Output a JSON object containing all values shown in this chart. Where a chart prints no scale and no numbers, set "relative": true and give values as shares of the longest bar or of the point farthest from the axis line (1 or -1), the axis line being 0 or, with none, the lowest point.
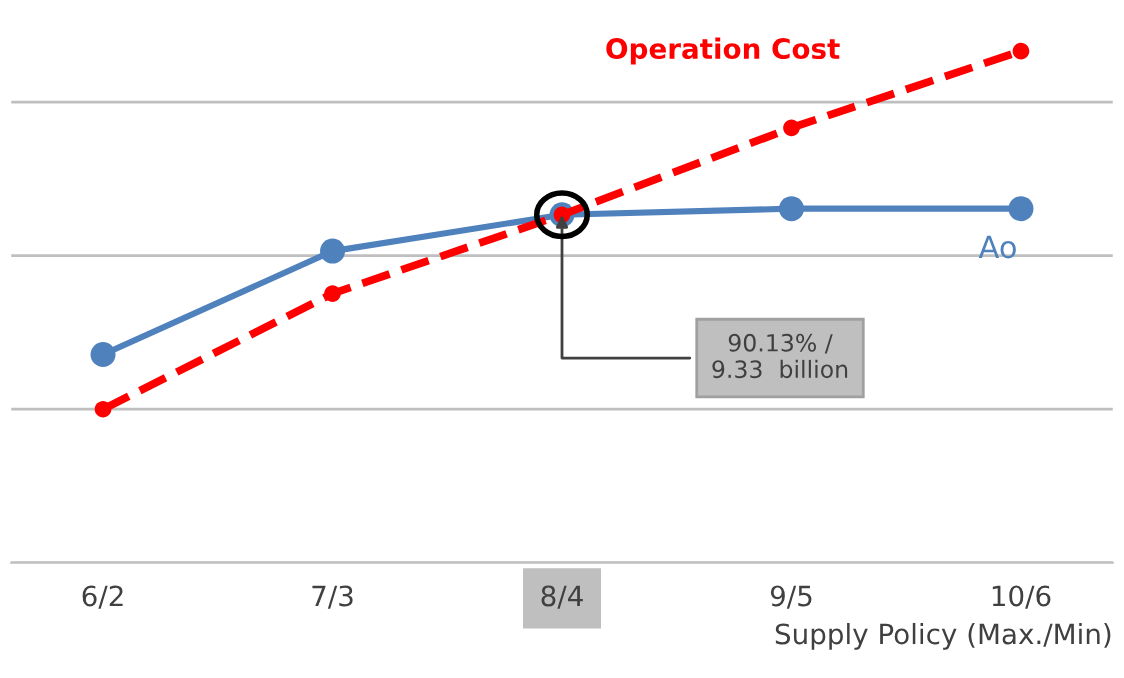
{
  "chart_data": {
    "type": "line",
    "relative": true,
    "xlabel": "Supply Policy (Max./Min)",
    "categories": [
      "6/2",
      "7/3",
      "8/4",
      "9/5",
      "10/6"
    ],
    "series": [
      {
        "name": "Ao",
        "color": "#4f81bd",
        "line_style": "solid",
        "values": [
          0.407,
          0.609,
          0.68,
          0.692,
          0.692
        ]
      },
      {
        "name": "Operation Cost",
        "color": "#ff0000",
        "line_style": "dashed",
        "values": [
          0.3,
          0.526,
          0.68,
          0.85,
          1.0
        ]
      }
    ],
    "marker": "circle",
    "grid": "y",
    "legend": false,
    "annotations": [
      {
        "text": "90.13% /\n9.33  billion",
        "x": "8/4",
        "y": 0.68
      }
    ]
  }
}
